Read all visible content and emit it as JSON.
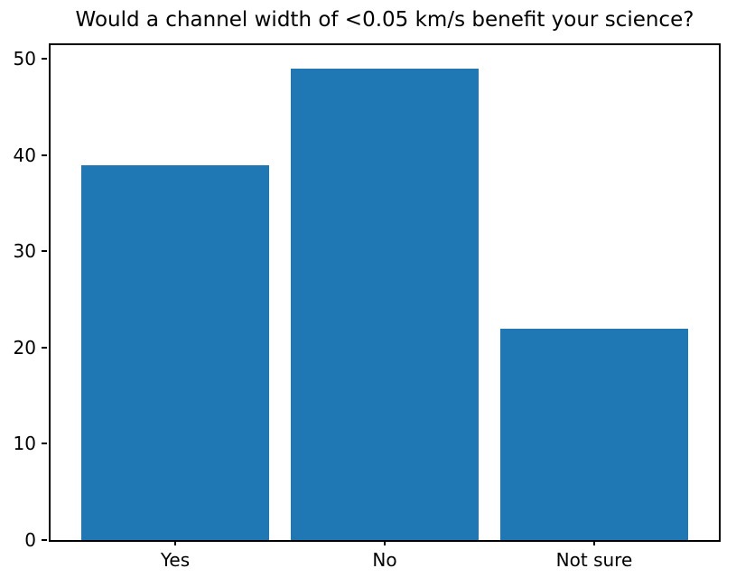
{
  "chart_data": {
    "type": "bar",
    "title": "Would a channel width of <0.05 km/s benefit your science?",
    "categories": [
      "Yes",
      "No",
      "Not sure"
    ],
    "values": [
      39,
      49,
      22
    ],
    "xlabel": "",
    "ylabel": "",
    "yticks": [
      0,
      10,
      20,
      30,
      40,
      50
    ],
    "ylim": [
      0,
      51.45
    ],
    "bar_width_fraction": 0.9,
    "bar_color": "#1f77b4",
    "axis_color": "#000000",
    "grid": false,
    "legend": null
  }
}
